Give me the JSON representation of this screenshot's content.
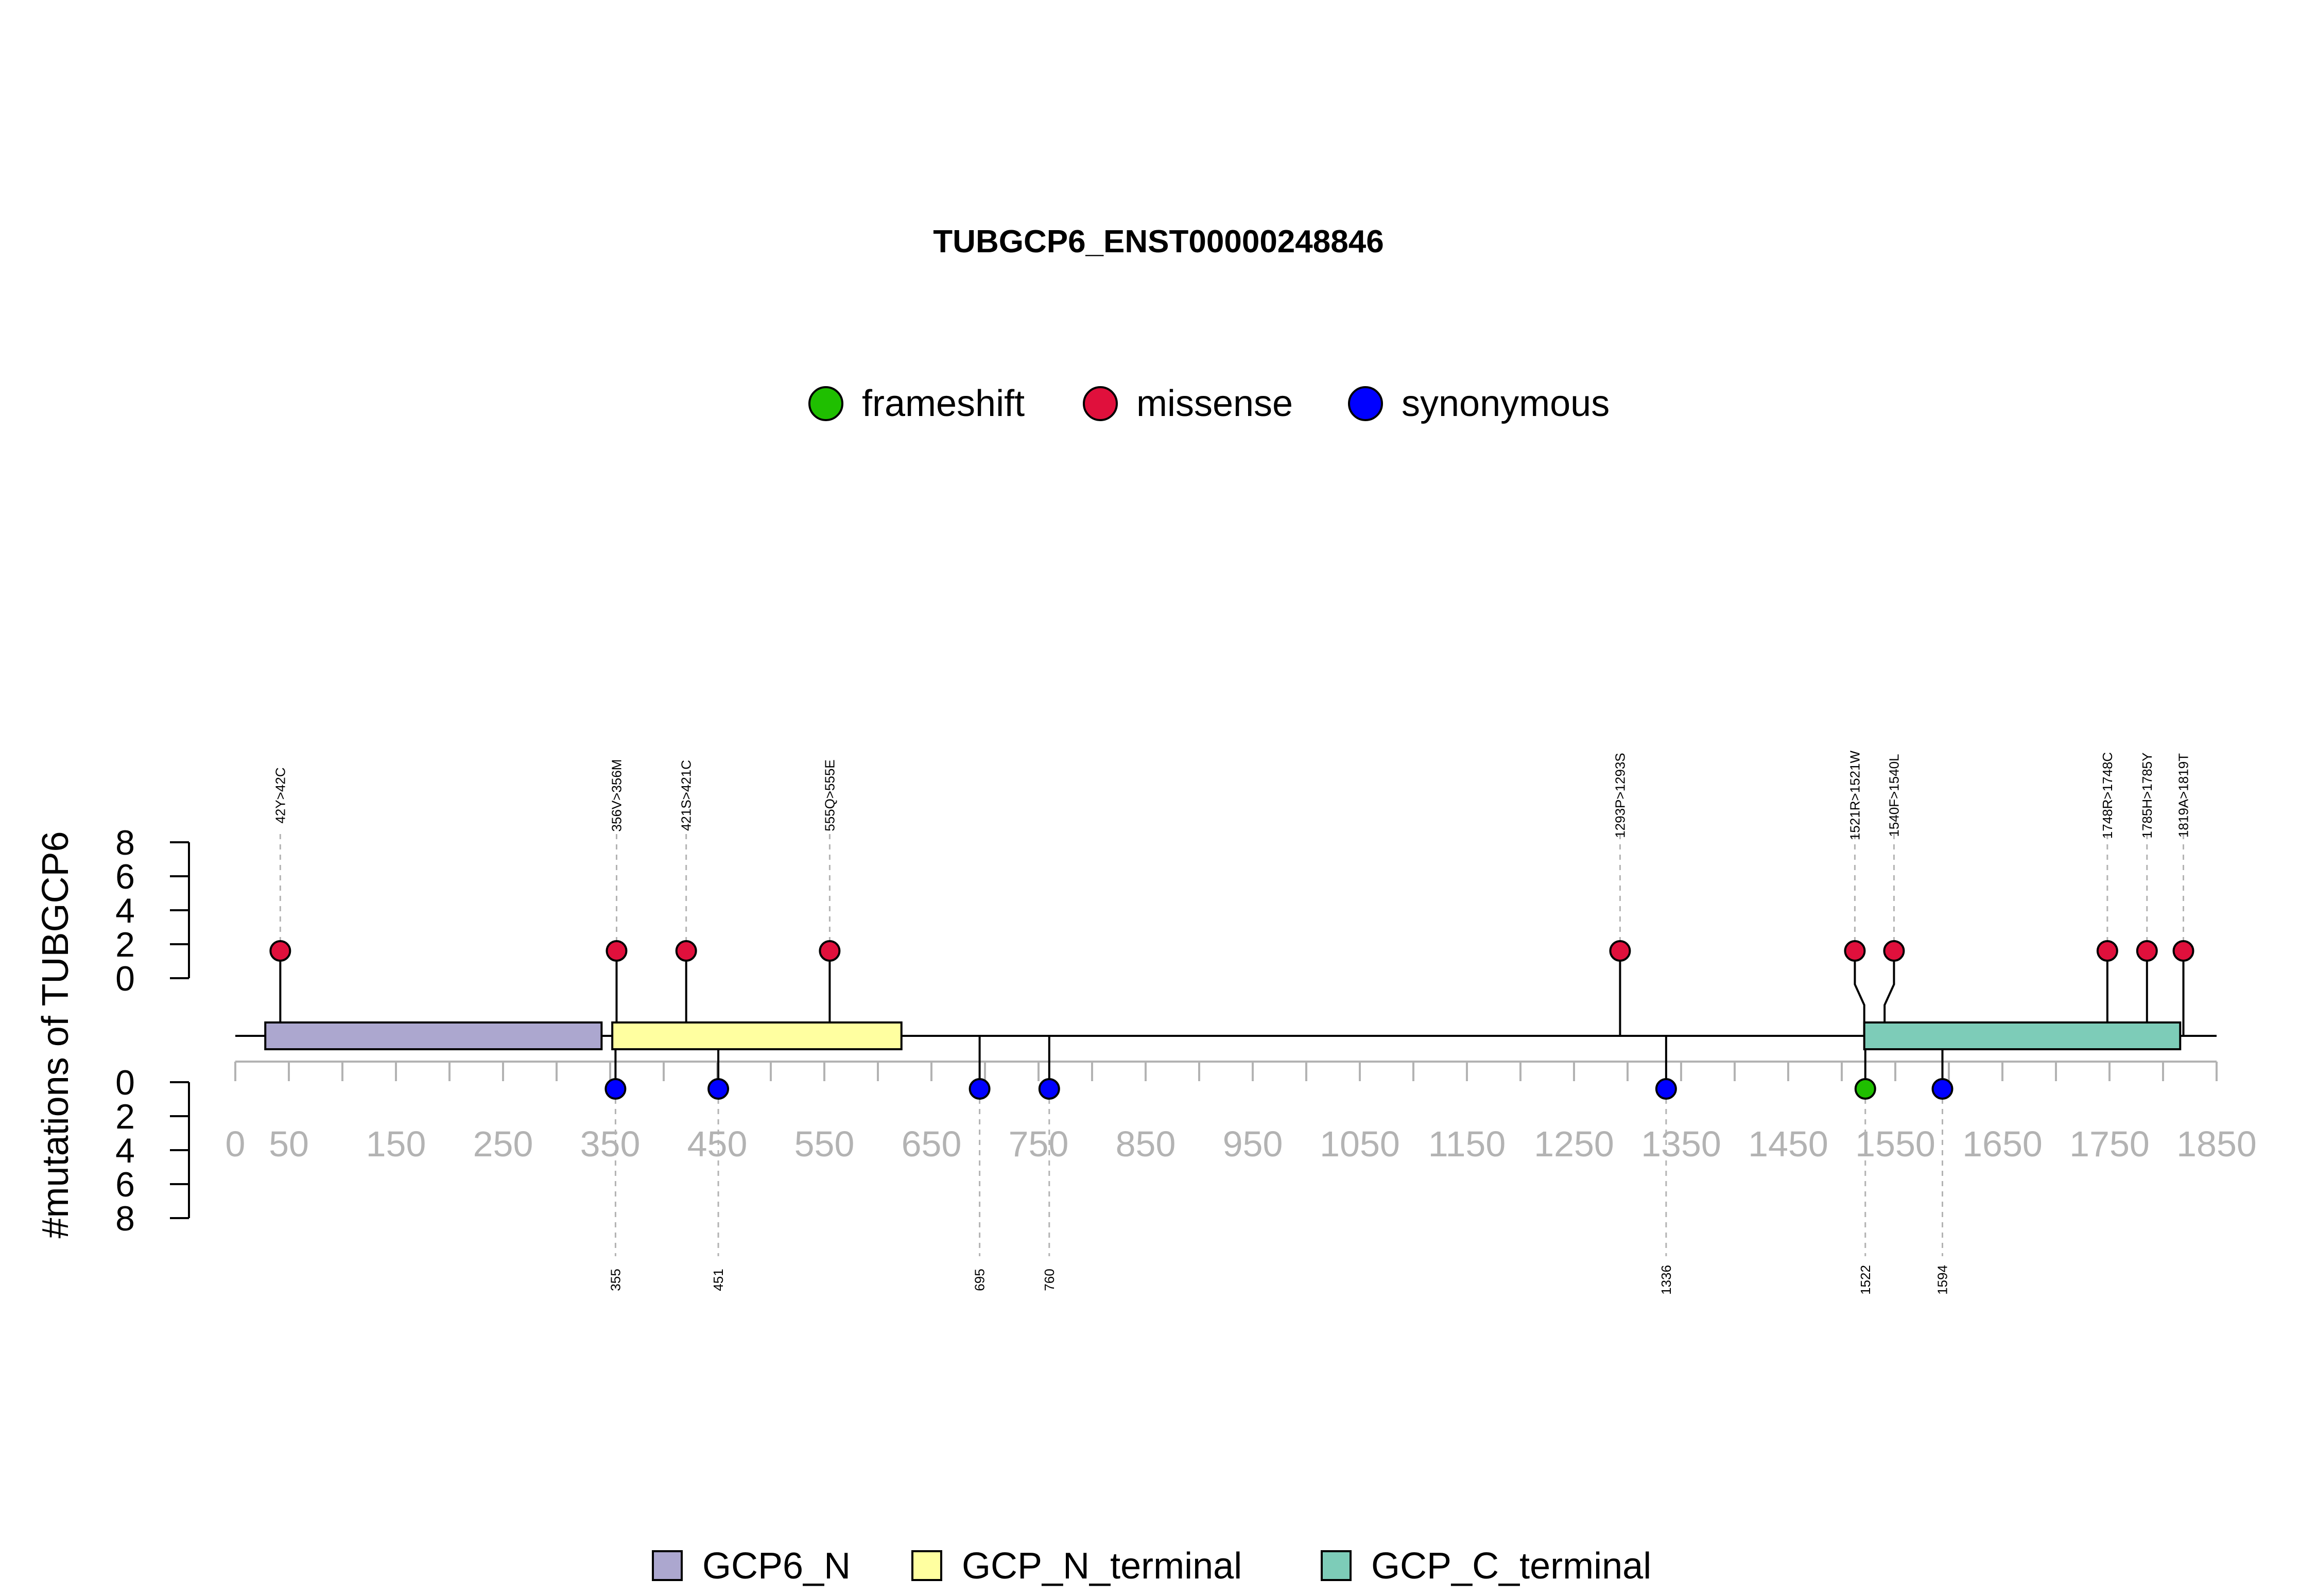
{
  "chart_data": {
    "type": "lollipop",
    "title": "TUBGCP6_ENST00000248846",
    "ylabel": "#mutations of TUBGCP6",
    "protein_length": 1819,
    "x_ticks": [
      0,
      50,
      150,
      250,
      350,
      450,
      550,
      650,
      750,
      850,
      950,
      1050,
      1150,
      1250,
      1350,
      1450,
      1550,
      1650,
      1750,
      1850
    ],
    "y_ticks": [
      0,
      2,
      4,
      6,
      8
    ],
    "mutation_legend": [
      {
        "label": "frameshift",
        "color": "#1FBF00"
      },
      {
        "label": "missense",
        "color": "#E0103C"
      },
      {
        "label": "synonymous",
        "color": "#0000FF"
      }
    ],
    "domain_legend": [
      {
        "label": "GCP6_N",
        "color": "#ACA7CF"
      },
      {
        "label": "GCP_N_terminal",
        "color": "#FFFFA0"
      },
      {
        "label": "GCP_C_terminal",
        "color": "#7DCCB8"
      }
    ],
    "domains": [
      {
        "name": "GCP6_N",
        "start": 28,
        "end": 342,
        "color": "#ACA7CF"
      },
      {
        "name": "GCP_N_terminal",
        "start": 352,
        "end": 622,
        "color": "#FFFFA0"
      },
      {
        "name": "GCP_C_terminal",
        "start": 1521,
        "end": 1816,
        "color": "#7DCCB8"
      }
    ],
    "mutations_top": [
      {
        "pos": 42,
        "label": "42Y>42C",
        "type": "missense",
        "count": 1
      },
      {
        "pos": 356,
        "label": "356V>356M",
        "type": "missense",
        "count": 1
      },
      {
        "pos": 421,
        "label": "421S>421C",
        "type": "missense",
        "count": 1
      },
      {
        "pos": 555,
        "label": "555Q>555E",
        "type": "missense",
        "count": 1
      },
      {
        "pos": 1293,
        "label": "1293P>1293S",
        "type": "missense",
        "count": 1
      },
      {
        "pos": 1521,
        "label": "1521R>1521W",
        "type": "missense",
        "count": 1
      },
      {
        "pos": 1540,
        "label": "1540F>1540L",
        "type": "missense",
        "count": 1
      },
      {
        "pos": 1748,
        "label": "1748R>1748C",
        "type": "missense",
        "count": 1
      },
      {
        "pos": 1785,
        "label": "1785H>1785Y",
        "type": "missense",
        "count": 1
      },
      {
        "pos": 1819,
        "label": "1819A>1819T",
        "type": "missense",
        "count": 1
      }
    ],
    "mutations_bottom": [
      {
        "pos": 355,
        "label": "355",
        "type": "synonymous",
        "count": 1
      },
      {
        "pos": 451,
        "label": "451",
        "type": "synonymous",
        "count": 1
      },
      {
        "pos": 695,
        "label": "695",
        "type": "synonymous",
        "count": 1
      },
      {
        "pos": 760,
        "label": "760",
        "type": "synonymous",
        "count": 1
      },
      {
        "pos": 1336,
        "label": "1336",
        "type": "synonymous",
        "count": 1
      },
      {
        "pos": 1522,
        "label": "1522",
        "type": "frameshift",
        "count": 1
      },
      {
        "pos": 1594,
        "label": "1594",
        "type": "synonymous",
        "count": 1
      }
    ]
  }
}
